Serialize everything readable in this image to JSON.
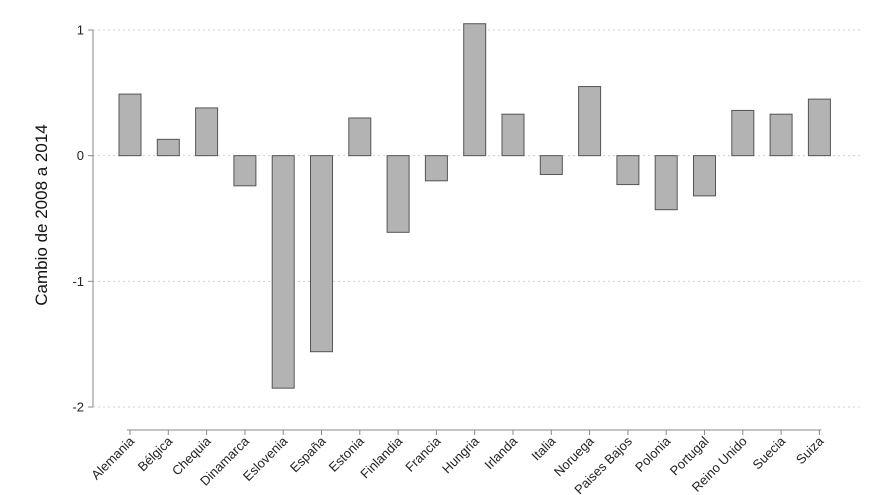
{
  "chart_data": {
    "type": "bar",
    "ylabel": "Cambio de 2008 a 2014",
    "xlabel": "",
    "ylim": [
      -2,
      1
    ],
    "yticks": [
      1,
      0,
      -1,
      -2
    ],
    "ytick_labels": [
      "1",
      "0",
      "-1",
      "-2"
    ],
    "grid": true,
    "categories": [
      "Alemania",
      "Bélgica",
      "Chequia",
      "Dinamarca",
      "Eslovenia",
      "España",
      "Estonia",
      "Finlandia",
      "Francia",
      "Hungria",
      "Irlanda",
      "Italia",
      "Noruega",
      "Paises Bajos",
      "Polonia",
      "Portugal",
      "Reino Unido",
      "Suecia",
      "Suiza"
    ],
    "values": [
      0.49,
      0.13,
      0.38,
      -0.24,
      -1.85,
      -1.56,
      0.3,
      -0.61,
      -0.2,
      1.05,
      0.33,
      -0.15,
      0.55,
      -0.23,
      -0.43,
      -0.32,
      0.36,
      0.33,
      0.45
    ],
    "colors": {
      "bar_fill": "#b3b3b3",
      "bar_stroke": "#555555"
    }
  }
}
